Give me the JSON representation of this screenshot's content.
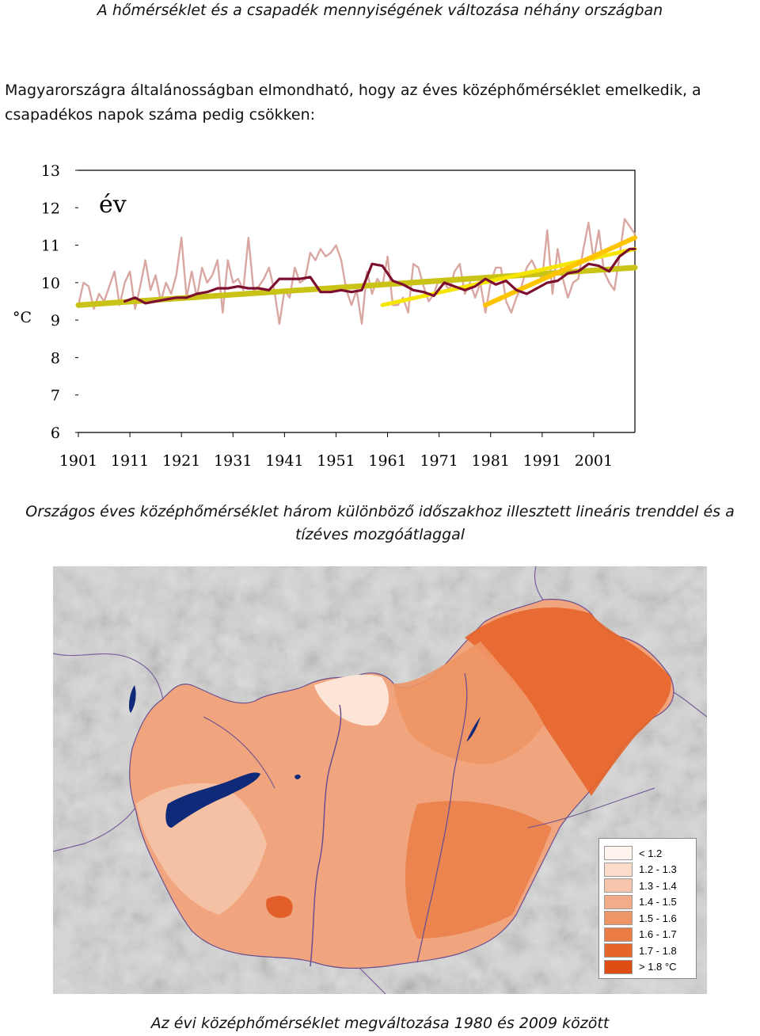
{
  "page": {
    "title": "A hőmérséklet és a csapadék mennyiségének változása néhány országban",
    "intro_line1": "Magyarországra általánosságban elmondható, hogy az éves középhőmérséklet emelkedik, a",
    "intro_line2": "csapadékos napok száma pedig csökken:",
    "caption1": "Országos éves középhőmérséklet három különböző időszakhoz illesztett lineáris trenddel és a tízéves mozgóátlaggal",
    "caption2": "Az évi középhőmérséklet megváltozása 1980 és 2009 között"
  },
  "chart_data": {
    "type": "line",
    "inner_label": "év",
    "ylabel": "°C",
    "ylim": [
      6,
      13
    ],
    "y_ticks": [
      "13",
      "12",
      "11",
      "10",
      "9",
      "8",
      "7",
      "6"
    ],
    "x_ticks": [
      "1901",
      "1911",
      "1921",
      "1931",
      "1941",
      "1951",
      "1961",
      "1971",
      "1981",
      "1991",
      "2001"
    ],
    "xlim": [
      1901,
      2009
    ],
    "colors": {
      "annual": "#d9a7a2",
      "moving_average": "#7d0f2e",
      "trend_long": "#c9c217",
      "trend_mid": "#f5e500",
      "trend_recent": "#ffc400"
    },
    "series": [
      {
        "key": "annual",
        "x": [
          1901,
          1902,
          1903,
          1904,
          1905,
          1906,
          1907,
          1908,
          1909,
          1910,
          1911,
          1912,
          1913,
          1914,
          1915,
          1916,
          1917,
          1918,
          1919,
          1920,
          1921,
          1922,
          1923,
          1924,
          1925,
          1926,
          1927,
          1928,
          1929,
          1930,
          1931,
          1932,
          1933,
          1934,
          1935,
          1936,
          1937,
          1938,
          1939,
          1940,
          1941,
          1942,
          1943,
          1944,
          1945,
          1946,
          1947,
          1948,
          1949,
          1950,
          1951,
          1952,
          1953,
          1954,
          1955,
          1956,
          1957,
          1958,
          1959,
          1960,
          1961,
          1962,
          1963,
          1964,
          1965,
          1966,
          1967,
          1968,
          1969,
          1970,
          1971,
          1972,
          1973,
          1974,
          1975,
          1976,
          1977,
          1978,
          1979,
          1980,
          1981,
          1982,
          1983,
          1984,
          1985,
          1986,
          1987,
          1988,
          1989,
          1990,
          1991,
          1992,
          1993,
          1994,
          1995,
          1996,
          1997,
          1998,
          1999,
          2000,
          2001,
          2002,
          2003,
          2004,
          2005,
          2006,
          2007,
          2008,
          2009
        ],
        "values": [
          9.4,
          10.0,
          9.9,
          9.3,
          9.7,
          9.5,
          9.9,
          10.3,
          9.4,
          10.0,
          10.3,
          9.3,
          9.9,
          10.6,
          9.8,
          10.2,
          9.5,
          10.0,
          9.7,
          10.2,
          11.2,
          9.6,
          10.3,
          9.6,
          10.4,
          10.0,
          10.2,
          10.6,
          9.2,
          10.6,
          10.0,
          10.1,
          9.8,
          11.2,
          9.8,
          9.9,
          10.1,
          10.4,
          9.8,
          8.9,
          9.8,
          9.6,
          10.4,
          10.0,
          10.1,
          10.8,
          10.6,
          10.9,
          10.7,
          10.8,
          11.0,
          10.6,
          9.8,
          9.4,
          9.8,
          8.9,
          10.3,
          9.7,
          10.1,
          9.9,
          10.7,
          9.4,
          9.4,
          9.6,
          9.2,
          10.5,
          10.4,
          9.9,
          9.5,
          9.7,
          10.1,
          10.0,
          9.8,
          10.3,
          10.5,
          9.7,
          10.0,
          9.6,
          10.0,
          9.2,
          10.0,
          10.4,
          10.4,
          9.5,
          9.2,
          9.6,
          9.9,
          10.4,
          10.6,
          10.3,
          10.1,
          11.4,
          9.7,
          10.9,
          10.1,
          9.6,
          10.0,
          10.1,
          10.9,
          11.6,
          10.6,
          11.4,
          10.3,
          10.0,
          9.8,
          10.7,
          11.7,
          11.5,
          11.3
        ]
      },
      {
        "key": "moving_average",
        "x": [
          1910,
          1912,
          1914,
          1916,
          1918,
          1920,
          1922,
          1924,
          1926,
          1928,
          1930,
          1932,
          1934,
          1936,
          1938,
          1940,
          1942,
          1944,
          1946,
          1948,
          1950,
          1952,
          1954,
          1956,
          1958,
          1960,
          1962,
          1964,
          1966,
          1968,
          1970,
          1972,
          1974,
          1976,
          1978,
          1980,
          1982,
          1984,
          1986,
          1988,
          1990,
          1992,
          1994,
          1996,
          1998,
          2000,
          2002,
          2004,
          2006,
          2008,
          2009
        ],
        "values": [
          9.5,
          9.6,
          9.45,
          9.5,
          9.55,
          9.6,
          9.6,
          9.7,
          9.75,
          9.85,
          9.85,
          9.9,
          9.85,
          9.85,
          9.8,
          10.1,
          10.1,
          10.1,
          10.15,
          9.75,
          9.75,
          9.8,
          9.75,
          9.8,
          10.5,
          10.45,
          10.05,
          9.95,
          9.8,
          9.75,
          9.65,
          10.0,
          9.9,
          9.8,
          9.9,
          10.1,
          9.95,
          10.05,
          9.8,
          9.7,
          9.85,
          10.0,
          10.05,
          10.25,
          10.3,
          10.5,
          10.45,
          10.3,
          10.7,
          10.9,
          10.9
        ]
      },
      {
        "key": "trend_long",
        "x": [
          1901,
          2009
        ],
        "values": [
          9.4,
          10.4
        ]
      },
      {
        "key": "trend_mid",
        "x": [
          1960,
          2009
        ],
        "values": [
          9.4,
          10.9
        ]
      },
      {
        "key": "trend_recent",
        "x": [
          1980,
          2009
        ],
        "values": [
          9.4,
          11.2
        ]
      }
    ]
  },
  "map": {
    "legend": [
      {
        "label": "< 1.2",
        "color": "#fff4ee"
      },
      {
        "label": "1.2 - 1.3",
        "color": "#fbdccb"
      },
      {
        "label": "1.3 - 1.4",
        "color": "#f6c6ac"
      },
      {
        "label": "1.4 - 1.5",
        "color": "#f2ad88"
      },
      {
        "label": "1.5 - 1.6",
        "color": "#ee9565"
      },
      {
        "label": "1.6 - 1.7",
        "color": "#ea7c44"
      },
      {
        "label": "1.7 - 1.8",
        "color": "#e5652a"
      },
      {
        "label": "> 1.8 °C",
        "color": "#de4e14"
      }
    ],
    "colors": {
      "background": "#d9d9d9",
      "water": "#102a7a",
      "rivers": "#6b4f8f"
    }
  }
}
